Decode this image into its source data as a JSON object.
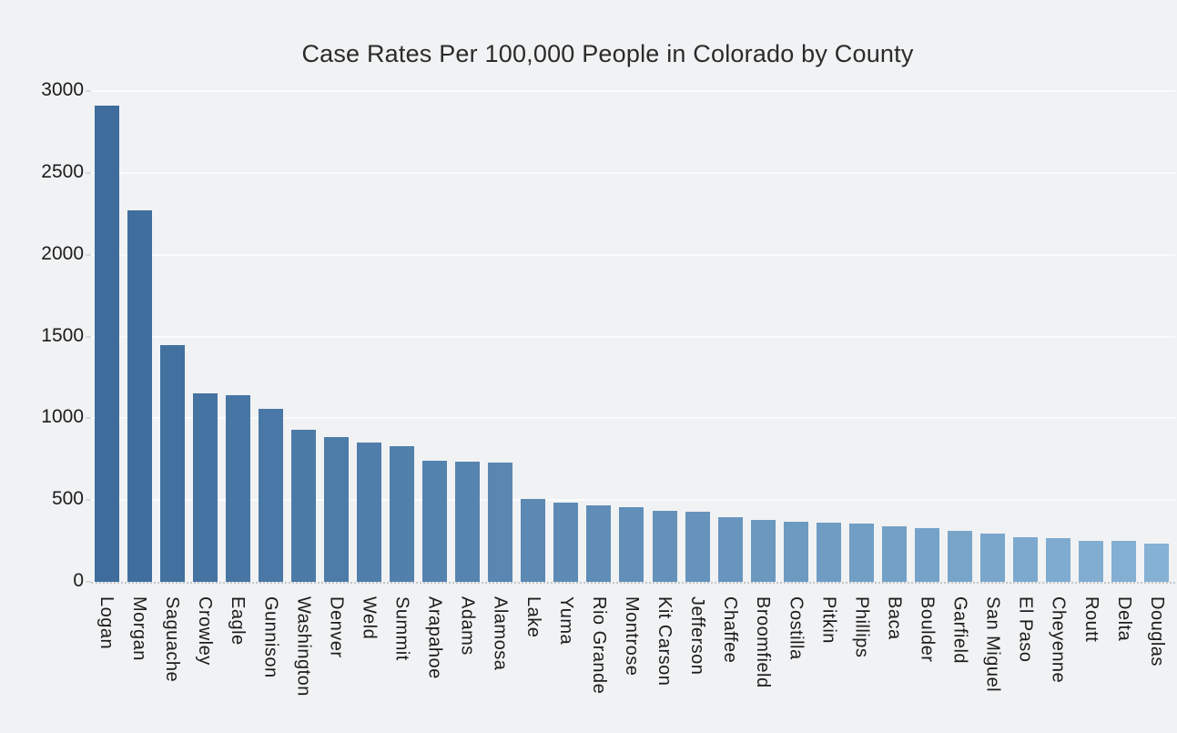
{
  "chart_data": {
    "type": "bar",
    "title": "Case Rates Per 100,000 People in Colorado by County",
    "xlabel": "",
    "ylabel": "",
    "ylim": [
      0,
      3000
    ],
    "yticks": [
      0,
      500,
      1000,
      1500,
      2000,
      2500,
      3000
    ],
    "grid": true,
    "legend": false,
    "categories": [
      "Logan",
      "Morgan",
      "Saguache",
      "Crowley",
      "Eagle",
      "Gunnison",
      "Washington",
      "Denver",
      "Weld",
      "Summit",
      "Arapahoe",
      "Adams",
      "Alamosa",
      "Lake",
      "Yuma",
      "Rio Grande",
      "Montrose",
      "Kit Carson",
      "Jefferson",
      "Chaffee",
      "Broomfield",
      "Costilla",
      "Pitkin",
      "Phillips",
      "Baca",
      "Boulder",
      "Garfield",
      "San Miguel",
      "El Paso",
      "Cheyenne",
      "Routt",
      "Delta",
      "Douglas"
    ],
    "values": [
      2910,
      2270,
      1445,
      1155,
      1143,
      1060,
      930,
      885,
      850,
      830,
      740,
      733,
      731,
      505,
      482,
      470,
      458,
      437,
      429,
      393,
      378,
      370,
      364,
      355,
      340,
      330,
      312,
      295,
      272,
      268,
      253,
      251,
      232
    ],
    "colors": {
      "background": "#F1F2F3",
      "gridline": "#FAFBFC",
      "baseline": "#C2C6CA",
      "bar_gradient_start": "#3E6D9D",
      "bar_gradient_end": "#85B1D4",
      "text": "#1C1C1C",
      "title_text": "#2B2B2B"
    }
  }
}
